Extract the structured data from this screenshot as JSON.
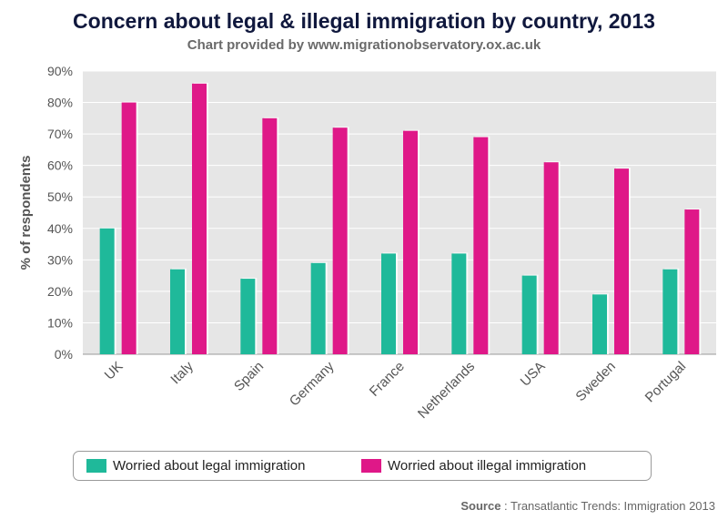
{
  "chart_data": {
    "type": "bar",
    "title": "Concern about legal & illegal immigration by country, 2013",
    "subtitle": "Chart provided by www.migrationobservatory.ox.ac.uk",
    "ylabel": "% of respondents",
    "xlabel": "",
    "ylim": [
      0,
      90
    ],
    "yticks": [
      "0%",
      "10%",
      "20%",
      "30%",
      "40%",
      "50%",
      "60%",
      "70%",
      "80%",
      "90%"
    ],
    "categories": [
      "UK",
      "Italy",
      "Spain",
      "Germany",
      "France",
      "Netherlands",
      "USA",
      "Sweden",
      "Portugal"
    ],
    "series": [
      {
        "name": "Worried about legal immigration",
        "color": "#1fb99a",
        "values": [
          40,
          27,
          24,
          29,
          32,
          32,
          25,
          19,
          27
        ]
      },
      {
        "name": "Worried about illegal immigration",
        "color": "#df1888",
        "values": [
          80,
          86,
          75,
          72,
          71,
          69,
          61,
          59,
          46
        ]
      }
    ],
    "grid": true,
    "legend_position": "bottom"
  },
  "source": {
    "label": "Source",
    "text": " : Transatlantic Trends: Immigration 2013"
  }
}
